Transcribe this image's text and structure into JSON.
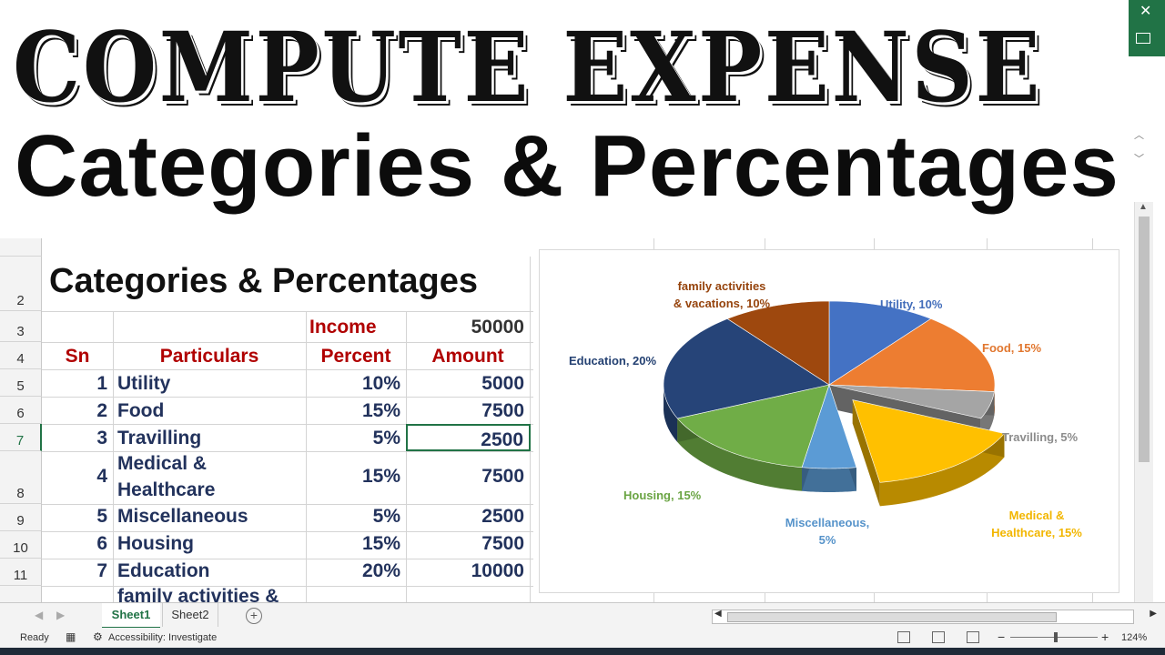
{
  "banner": {
    "headline1": "COMPUTE EXPENSE",
    "headline2": "Categories & Percentages"
  },
  "sheet": {
    "title": "Categories & Percentages",
    "income_label": "Income",
    "income_value": "50000",
    "headers": {
      "sn": "Sn",
      "particulars": "Particulars",
      "percent": "Percent",
      "amount": "Amount"
    },
    "row_numbers": [
      "2",
      "3",
      "4",
      "5",
      "6",
      "7",
      "8",
      "9",
      "10",
      "11"
    ],
    "rows": [
      {
        "sn": "1",
        "particular": "Utility",
        "percent": "10%",
        "amount": "5000"
      },
      {
        "sn": "2",
        "particular": "Food",
        "percent": "15%",
        "amount": "7500"
      },
      {
        "sn": "3",
        "particular": "Travilling",
        "percent": "5%",
        "amount": "2500"
      },
      {
        "sn": "4",
        "particular": "Medical &",
        "particular2": "Healthcare",
        "percent": "15%",
        "amount": "7500"
      },
      {
        "sn": "5",
        "particular": "Miscellaneous",
        "percent": "5%",
        "amount": "2500"
      },
      {
        "sn": "6",
        "particular": "Housing",
        "percent": "15%",
        "amount": "7500"
      },
      {
        "sn": "7",
        "particular": "Education",
        "percent": "20%",
        "amount": "10000"
      },
      {
        "sn": "",
        "particular": "family activities &",
        "percent": "",
        "amount": ""
      }
    ]
  },
  "chart_data": {
    "type": "pie",
    "categories": [
      "Utility",
      "Food",
      "Travilling",
      "Medical & Healthcare",
      "Miscellaneous",
      "Housing",
      "Education",
      "family activities & vacations"
    ],
    "values": [
      10,
      15,
      5,
      15,
      5,
      15,
      20,
      10
    ],
    "labels": {
      "utility": "Utility, 10%",
      "food": "Food, 15%",
      "travel": "Travilling, 5%",
      "medical1": "Medical &",
      "medical2": "Healthcare, 15%",
      "misc1": "Miscellaneous,",
      "misc2": "5%",
      "housing": "Housing, 15%",
      "education": "Education, 20%",
      "family1": "family activities",
      "family2": "& vacations, 10%"
    },
    "colors": [
      "#4472c4",
      "#ed7d31",
      "#a5a5a5",
      "#ffc000",
      "#5b9bd5",
      "#70ad47",
      "#264478",
      "#9e480e"
    ],
    "exploded": "Medical & Healthcare"
  },
  "tabs": {
    "sheet1": "Sheet1",
    "sheet2": "Sheet2",
    "add": "+"
  },
  "status": {
    "ready": "Ready",
    "accessibility": "Accessibility: Investigate",
    "zoom": "124%"
  }
}
